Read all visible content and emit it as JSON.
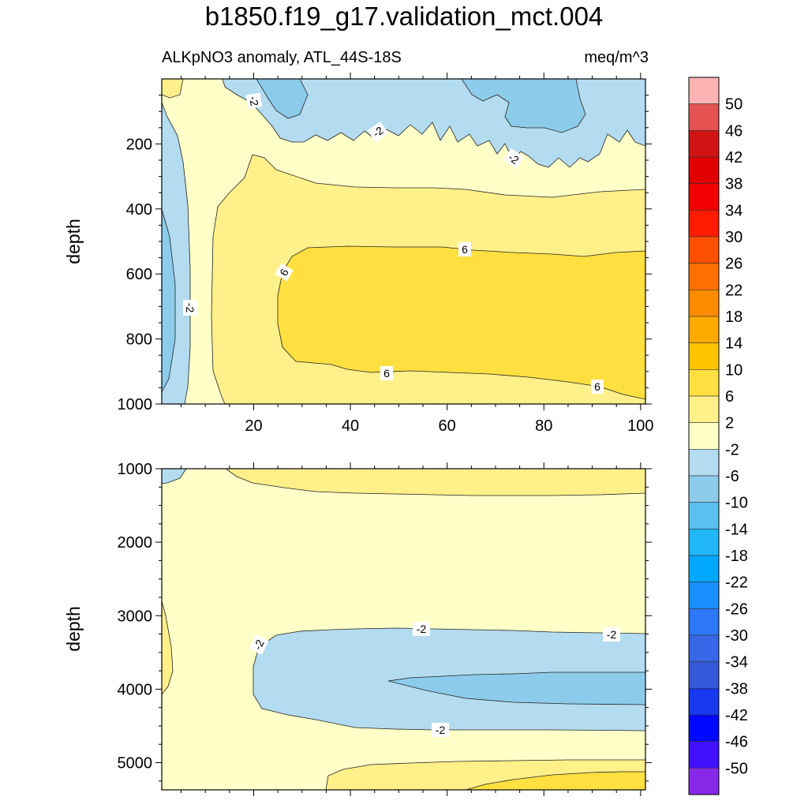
{
  "title": "b1850.f19_g17.validation_mct.004",
  "subtitle_left": "ALKpNO3 anomaly, ATL_44S-18S",
  "units": "meq/m^3",
  "chart_data": [
    {
      "type": "contour",
      "panel": "upper",
      "xlabel": "",
      "ylabel": "depth",
      "xlim": [
        1,
        101
      ],
      "ylim": [
        0,
        1000
      ],
      "x_ticks": [
        "20",
        "40",
        "60",
        "80",
        "100"
      ],
      "y_ticks": [
        "200",
        "400",
        "600",
        "800",
        "1000"
      ],
      "contour_labels": [
        "-2",
        "-2",
        "-2",
        "-2",
        "6",
        "6",
        "6",
        "6"
      ],
      "value_bands": [
        {
          "band": "-6 to -2",
          "location": "surface layer x 18-101, depth 0-150 (ragged), and western edge x 1-7 depth 60-1000"
        },
        {
          "band": "-10 to -6",
          "location": "surface patches near x 28-33 and x 64-86, depth 0-120"
        },
        {
          "band": "-2 to 2",
          "location": "x 8-16 full depth; depth 150-280 across x 20-101"
        },
        {
          "band": "2 to 6",
          "location": "depth 230-1000 across x 14-101 (outside core)"
        },
        {
          "band": "6 to 10",
          "location": "core x 26-101, depth 320-970"
        }
      ]
    },
    {
      "type": "contour",
      "panel": "lower",
      "xlabel": "",
      "ylabel": "depth",
      "xlim": [
        1,
        101
      ],
      "ylim": [
        1000,
        5370
      ],
      "x_ticks": [],
      "y_ticks": [
        "1000",
        "2000",
        "3000",
        "4000",
        "5000"
      ],
      "contour_labels": [
        "-2",
        "-2",
        "-2",
        "-2"
      ],
      "value_bands": [
        {
          "band": "-2 to 2",
          "location": "background, most of the section"
        },
        {
          "band": "2 to 6",
          "location": "near 1000-1330 depth x 13-101; western edge x 1-3 depth 2800-4000; bottom right depth 4950-5370 x 36-101"
        },
        {
          "band": "-6 to -2",
          "location": "x 20-101, depth 3160-4600; small patch top-left x 1-6 depth 1000-1200"
        },
        {
          "band": "-10 to -6",
          "location": "x 48-101, depth 3750-4230"
        },
        {
          "band": "6 to 10",
          "location": "x 68-101, depth 5200-5370"
        }
      ]
    }
  ],
  "colorbar": {
    "labels": [
      "50",
      "46",
      "42",
      "38",
      "34",
      "30",
      "26",
      "22",
      "18",
      "14",
      "10",
      "6",
      "2",
      "-2",
      "-6",
      "-10",
      "-14",
      "-18",
      "-22",
      "-26",
      "-30",
      "-34",
      "-38",
      "-42",
      "-46",
      "-50"
    ],
    "colors": [
      "#fcb3b3",
      "#e45252",
      "#d01414",
      "#e00000",
      "#f00000",
      "#ff1a00",
      "#ff5000",
      "#ff7000",
      "#ff8c00",
      "#ffaa00",
      "#ffc400",
      "#ffe040",
      "#fff08a",
      "#ffffc8",
      "#b4dcf0",
      "#8cccea",
      "#5ac0f0",
      "#20b8f8",
      "#00a8ff",
      "#1890ff",
      "#2c78f8",
      "#3868e8",
      "#3458d8",
      "#1838f0",
      "#0008ff",
      "#4010ff",
      "#8828e8"
    ]
  },
  "colors": {
    "lt_neg_2": "#b4dcf0",
    "lt_neg_6": "#8cccea",
    "band_neg2_2": "#ffffc8",
    "band_2_6": "#fff08a",
    "band_6_10": "#ffe040",
    "line": "#222222"
  }
}
